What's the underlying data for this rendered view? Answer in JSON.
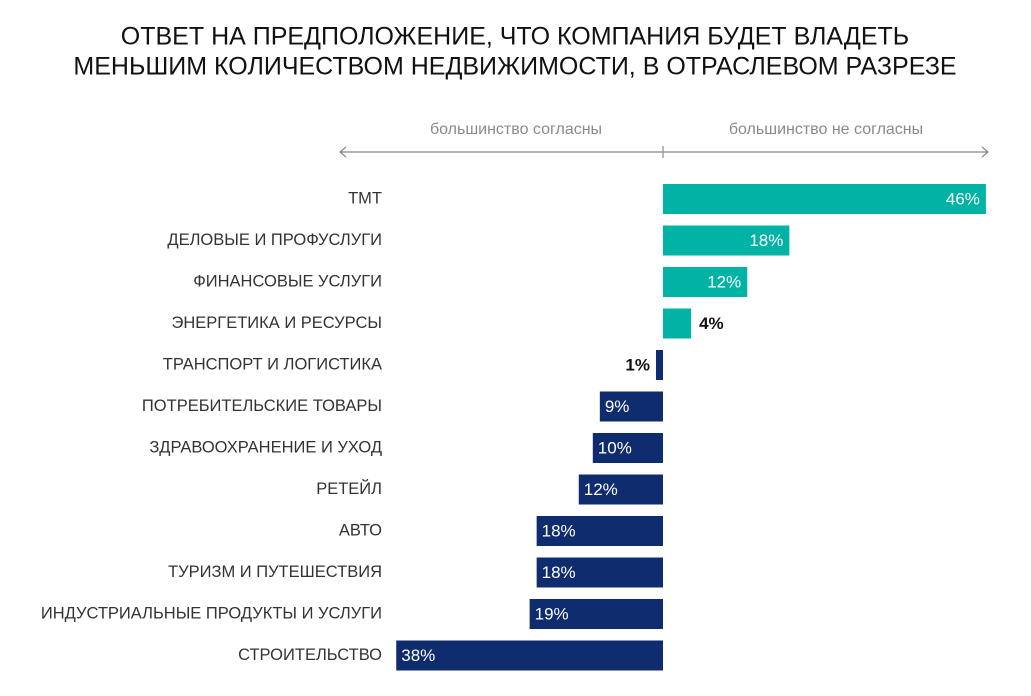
{
  "chart_data": {
    "type": "diverging-bar",
    "title": [
      "ОТВЕТ НА ПРЕДПОЛОЖЕНИЕ, ЧТО КОМПАНИЯ БУДЕТ ВЛАДЕТЬ",
      "МЕНЬШИМ КОЛИЧЕСТВОМ НЕДВИЖИМОСТИ, В ОТРАСЛЕВОМ РАЗРЕЗЕ"
    ],
    "categories": [
      "ТМТ",
      "ДЕЛОВЫЕ И ПРОФУСЛУГИ",
      "ФИНАНСОВЫЕ УСЛУГИ",
      "ЭНЕРГЕТИКА И РЕСУРСЫ",
      "ТРАНСПОРТ И ЛОГИСТИКА",
      "ПОТРЕБИТЕЛЬСКИЕ ТОВАРЫ",
      "ЗДРАВООХРАНЕНИЕ И УХОД",
      "РЕТЕЙЛ",
      "АВТО",
      "ТУРИЗМ И ПУТЕШЕСТВИЯ",
      "ИНДУСТРИАЛЬНЫЕ ПРОДУКТЫ И УСЛУГИ",
      "СТРОИТЕЛЬСТВО"
    ],
    "series": [
      {
        "name": "большинство согласны",
        "color": "#0f2d6e",
        "direction": "left",
        "values": [
          null,
          null,
          null,
          null,
          1,
          9,
          10,
          12,
          18,
          18,
          19,
          38
        ],
        "value_labels": [
          null,
          null,
          null,
          null,
          "1%",
          "9%",
          "10%",
          "12%",
          "18%",
          "18%",
          "19%",
          "38%"
        ]
      },
      {
        "name": "большинство не согласны",
        "color": "#00b3a4",
        "direction": "right",
        "values": [
          46,
          18,
          12,
          4,
          null,
          null,
          null,
          null,
          null,
          null,
          null,
          null
        ],
        "value_labels": [
          "46%",
          "18%",
          "12%",
          "4%",
          null,
          null,
          null,
          null,
          null,
          null,
          null,
          null
        ]
      }
    ]
  }
}
